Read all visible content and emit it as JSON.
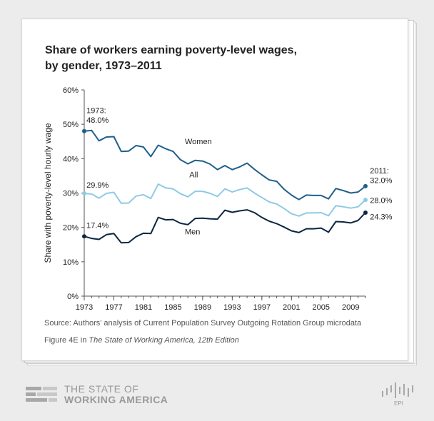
{
  "title": "Share of workers earning poverty-level wages, by gender, 1973–2011",
  "source": "Source: Authors’ analysis of Current Population Survey Outgoing Rotation Group microdata",
  "figure": {
    "prefix": "Figure 4E in ",
    "publication": "The State of Working America, 12th Edition"
  },
  "brand": {
    "line1": "THE STATE OF",
    "line2": "WORKING AMERICA",
    "epi": "EPI"
  },
  "colors": {
    "women": "#1f5f8b",
    "all": "#8ecae6",
    "men": "#0b2640",
    "axis": "#555555"
  },
  "chart_data": {
    "type": "line",
    "title": "Share of workers earning poverty-level wages, by gender, 1973–2011",
    "xlabel": "",
    "ylabel": "Share with poverty-level hourly wage",
    "xlim": [
      1973,
      2011
    ],
    "ylim": [
      0,
      60
    ],
    "x_ticks": [
      "1973",
      "1977",
      "1981",
      "1985",
      "1989",
      "1993",
      "1997",
      "2001",
      "2005",
      "2009"
    ],
    "y_ticks": [
      "0%",
      "10%",
      "20%",
      "30%",
      "40%",
      "50%",
      "60%"
    ],
    "grid": false,
    "x": [
      1973,
      1974,
      1975,
      1976,
      1977,
      1978,
      1979,
      1980,
      1981,
      1982,
      1983,
      1984,
      1985,
      1986,
      1987,
      1988,
      1989,
      1990,
      1991,
      1992,
      1993,
      1994,
      1995,
      1996,
      1997,
      1998,
      1999,
      2000,
      2001,
      2002,
      2003,
      2004,
      2005,
      2006,
      2007,
      2008,
      2009,
      2010,
      2011
    ],
    "series": [
      {
        "name": "Women",
        "values": [
          48.0,
          48.2,
          45.2,
          46.3,
          46.4,
          42.1,
          42.2,
          43.8,
          43.4,
          40.6,
          43.9,
          42.9,
          42.1,
          39.7,
          38.5,
          39.5,
          39.3,
          38.4,
          36.8,
          38.0,
          36.8,
          37.6,
          38.7,
          36.9,
          35.3,
          33.8,
          33.4,
          31.1,
          29.4,
          28.1,
          29.4,
          29.3,
          29.3,
          28.3,
          31.3,
          30.7,
          30.0,
          30.3,
          32.0
        ]
      },
      {
        "name": "All",
        "values": [
          29.9,
          29.7,
          28.5,
          29.9,
          30.2,
          27.0,
          27.1,
          29.1,
          29.5,
          28.4,
          32.6,
          31.5,
          31.2,
          29.8,
          28.9,
          30.5,
          30.5,
          29.9,
          29.0,
          31.2,
          30.3,
          31.0,
          31.5,
          30.0,
          28.7,
          27.4,
          26.8,
          25.5,
          24.0,
          23.3,
          24.2,
          24.2,
          24.3,
          23.4,
          26.3,
          26.0,
          25.6,
          26.0,
          28.0
        ]
      },
      {
        "name": "Men",
        "values": [
          17.4,
          16.8,
          16.5,
          17.9,
          18.2,
          15.5,
          15.6,
          17.3,
          18.3,
          18.2,
          22.9,
          22.2,
          22.3,
          21.2,
          20.8,
          22.6,
          22.7,
          22.5,
          22.4,
          25.0,
          24.4,
          24.8,
          25.1,
          24.3,
          22.9,
          21.8,
          21.1,
          20.1,
          19.0,
          18.5,
          19.6,
          19.6,
          19.8,
          18.6,
          21.7,
          21.6,
          21.3,
          22.0,
          24.3
        ]
      }
    ],
    "annotations": [
      {
        "id": "start-women-year",
        "text": "1973:"
      },
      {
        "id": "start-women-value",
        "text": "48.0%"
      },
      {
        "id": "start-all-value",
        "text": "29.9%"
      },
      {
        "id": "start-men-value",
        "text": "17.4%"
      },
      {
        "id": "end-year",
        "text": "2011:"
      },
      {
        "id": "end-women-value",
        "text": "32.0%"
      },
      {
        "id": "end-all-value",
        "text": "28.0%"
      },
      {
        "id": "end-men-value",
        "text": "24.3%"
      }
    ]
  }
}
